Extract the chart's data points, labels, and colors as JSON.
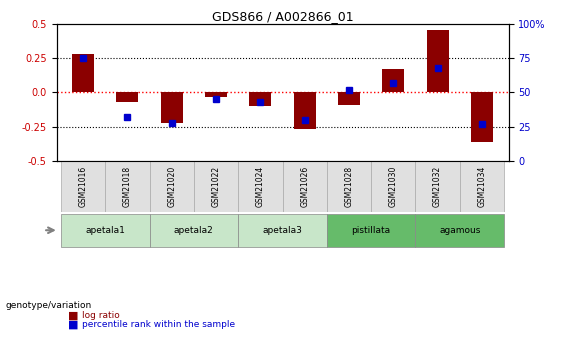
{
  "title": "GDS866 / A002866_01",
  "samples": [
    "GSM21016",
    "GSM21018",
    "GSM21020",
    "GSM21022",
    "GSM21024",
    "GSM21026",
    "GSM21028",
    "GSM21030",
    "GSM21032",
    "GSM21034"
  ],
  "log_ratio": [
    0.28,
    -0.07,
    -0.22,
    -0.03,
    -0.1,
    -0.27,
    -0.09,
    0.17,
    0.46,
    -0.36
  ],
  "percentile_rank": [
    75,
    32,
    28,
    45,
    43,
    30,
    52,
    57,
    68,
    27
  ],
  "ylim": [
    -0.5,
    0.5
  ],
  "y2lim": [
    0,
    100
  ],
  "yticks": [
    -0.5,
    -0.25,
    0.0,
    0.25,
    0.5
  ],
  "y2ticks": [
    0,
    25,
    50,
    75,
    100
  ],
  "y2tick_labels": [
    "0",
    "25",
    "50",
    "75",
    "100%"
  ],
  "bar_color": "#8B0000",
  "point_color": "#0000CD",
  "bar_width": 0.5,
  "left_color": "#CC0000",
  "right_color": "#0000CC",
  "legend_items": [
    "log ratio",
    "percentile rank within the sample"
  ],
  "legend_colors": [
    "#8B0000",
    "#0000CD"
  ],
  "genotype_label": "genotype/variation",
  "background_color": "#ffffff",
  "groups_info": [
    {
      "name": "apetala1",
      "start": 0,
      "end": 1,
      "color": "#c8e6c9"
    },
    {
      "name": "apetala2",
      "start": 2,
      "end": 3,
      "color": "#c8e6c9"
    },
    {
      "name": "apetala3",
      "start": 4,
      "end": 5,
      "color": "#c8e6c9"
    },
    {
      "name": "pistillata",
      "start": 6,
      "end": 7,
      "color": "#66bb6a"
    },
    {
      "name": "agamous",
      "start": 8,
      "end": 9,
      "color": "#66bb6a"
    }
  ]
}
